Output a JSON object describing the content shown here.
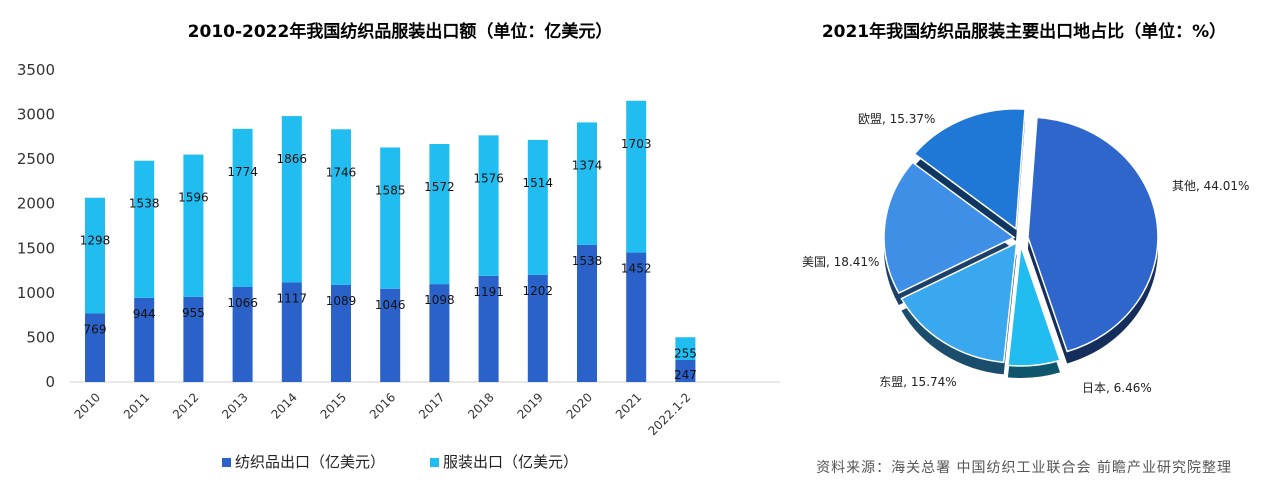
{
  "chart_data": [
    {
      "type": "bar",
      "stacked": true,
      "title": "2010-2022年我国纺织品服装出口额（单位：亿美元）",
      "categories": [
        "2010",
        "2011",
        "2012",
        "2013",
        "2014",
        "2015",
        "2016",
        "2017",
        "2018",
        "2019",
        "2020",
        "2021",
        "2022.1-2"
      ],
      "series": [
        {
          "name": "纺织品出口（亿美元）",
          "color": "#2a62c9",
          "values": [
            769,
            944,
            955,
            1066,
            1117,
            1089,
            1046,
            1098,
            1191,
            1202,
            1538,
            1452,
            247
          ]
        },
        {
          "name": "服装出口（亿美元）",
          "color": "#21bdf0",
          "values": [
            1298,
            1538,
            1596,
            1774,
            1866,
            1746,
            1585,
            1572,
            1576,
            1514,
            1374,
            1703,
            255
          ]
        }
      ],
      "ylim": [
        0,
        3500
      ],
      "yticks": [
        0,
        500,
        1000,
        1500,
        2000,
        2500,
        3000,
        3500
      ],
      "legend": "bottom",
      "grid": false
    },
    {
      "type": "pie",
      "title": "2021年我国纺织品服装主要出口地占比（单位：%）",
      "slices": [
        {
          "label": "其他",
          "value": 44.01,
          "color": "#2f66cc",
          "text": "其他, 44.01%"
        },
        {
          "label": "日本",
          "value": 6.46,
          "color": "#22bdf0",
          "text": "日本, 6.46%"
        },
        {
          "label": "东盟",
          "value": 15.74,
          "color": "#3aa8ee",
          "text": "东盟, 15.74%"
        },
        {
          "label": "美国",
          "value": 18.41,
          "color": "#3f8fe6",
          "text": "美国, 18.41%"
        },
        {
          "label": "欧盟",
          "value": 15.37,
          "color": "#1f78d6",
          "text": "欧盟, 15.37%"
        }
      ]
    }
  ],
  "source": "资料来源：海关总署  中国纺织工业联合会  前瞻产业研究院整理"
}
